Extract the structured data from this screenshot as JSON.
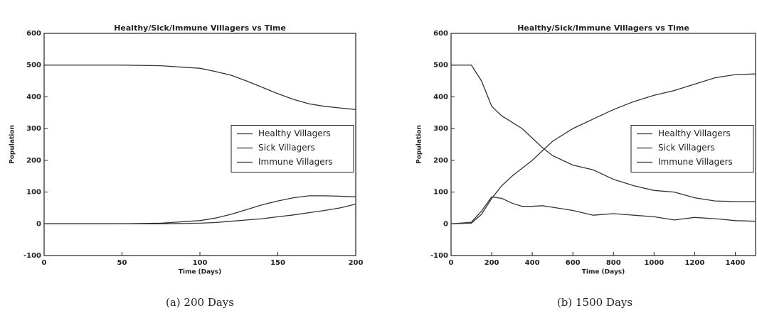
{
  "chart_data": [
    {
      "type": "line",
      "title": "Healthy/Sick/Immune Villagers vs Time",
      "caption": "(a) 200 Days",
      "x_label": "Time (Days)",
      "y_label": "Population",
      "x": [
        0,
        25,
        50,
        75,
        100,
        110,
        120,
        130,
        140,
        150,
        160,
        170,
        180,
        190,
        200
      ],
      "series": [
        {
          "name": "Healthy Villagers",
          "color": "#333333",
          "values": [
            500,
            500,
            500,
            498,
            490,
            480,
            468,
            450,
            430,
            410,
            392,
            378,
            370,
            365,
            360
          ]
        },
        {
          "name": "Sick Villagers",
          "color": "#333333",
          "values": [
            0,
            0,
            0,
            2,
            10,
            18,
            30,
            45,
            60,
            72,
            82,
            88,
            88,
            87,
            85
          ]
        },
        {
          "name": "Immune Villagers",
          "color": "#333333",
          "values": [
            0,
            0,
            0,
            0,
            2,
            4,
            8,
            12,
            16,
            22,
            28,
            35,
            42,
            50,
            62
          ]
        }
      ],
      "xlim": [
        0,
        200
      ],
      "xticks": [
        0,
        50,
        100,
        150,
        200
      ],
      "ylim": [
        -100,
        600
      ],
      "yticks": [
        -100,
        0,
        100,
        200,
        300,
        400,
        500,
        600
      ],
      "legend": "center right"
    },
    {
      "type": "line",
      "title": "Healthy/Sick/Immune Villagers vs Time",
      "caption": "(b) 1500 Days",
      "x_label": "Time (Days)",
      "y_label": "Population",
      "x": [
        0,
        100,
        150,
        200,
        250,
        300,
        350,
        400,
        450,
        500,
        600,
        700,
        800,
        900,
        1000,
        1100,
        1200,
        1300,
        1400,
        1500
      ],
      "series": [
        {
          "name": "Healthy Villagers",
          "color": "#333333",
          "values": [
            500,
            500,
            450,
            370,
            340,
            320,
            300,
            270,
            240,
            215,
            185,
            170,
            140,
            120,
            105,
            100,
            82,
            72,
            70,
            70
          ]
        },
        {
          "name": "Sick Villagers",
          "color": "#333333",
          "values": [
            0,
            5,
            40,
            85,
            80,
            65,
            55,
            55,
            57,
            52,
            42,
            27,
            32,
            27,
            22,
            12,
            20,
            16,
            10,
            8
          ]
        },
        {
          "name": "Immune Villagers",
          "color": "#333333",
          "values": [
            0,
            2,
            30,
            80,
            120,
            150,
            175,
            200,
            230,
            260,
            300,
            330,
            360,
            385,
            405,
            420,
            440,
            460,
            470,
            472
          ]
        }
      ],
      "xlim": [
        0,
        1500
      ],
      "xticks": [
        0,
        200,
        400,
        600,
        800,
        1000,
        1200,
        1400
      ],
      "ylim": [
        -100,
        600
      ],
      "yticks": [
        -100,
        0,
        100,
        200,
        300,
        400,
        500,
        600
      ],
      "legend": "center right"
    }
  ]
}
